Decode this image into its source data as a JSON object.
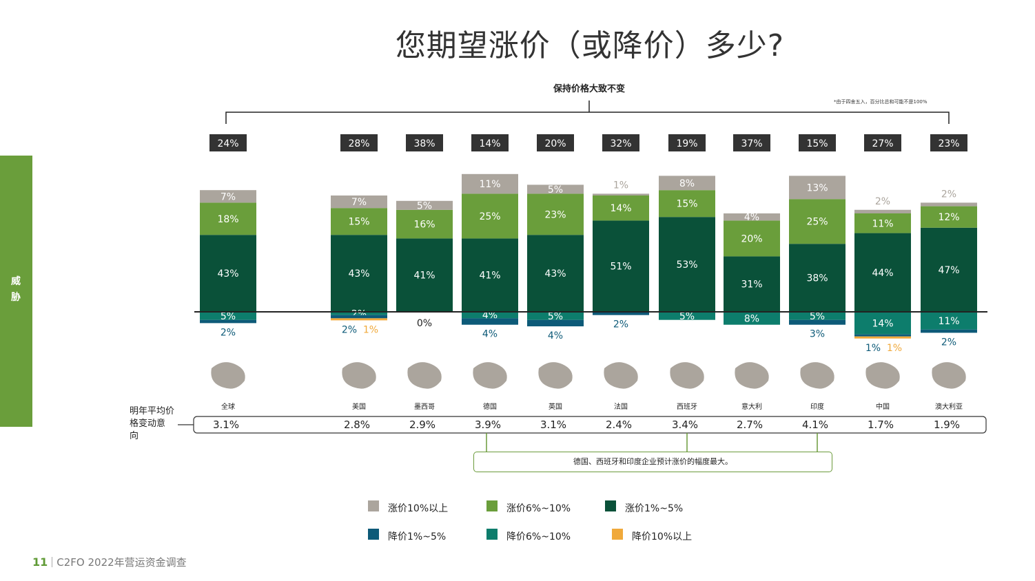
{
  "title": "您期望涨价（或降价）多少?",
  "side_label": "威胁",
  "stable_label": "保持价格大致不变",
  "footnote": "*由于四舍五入，百分比总和可能不是100%",
  "row_label": "明年平均价格变动意向",
  "callout_text": "德国、西班牙和印度企业预计涨价的幅度最大。",
  "footer": {
    "page": "11",
    "text": "C2FO 2022年营运资金调查"
  },
  "colors": {
    "up10plus": "#aba59d",
    "up6to10": "#6a9e3b",
    "up1to5": "#0a5139",
    "down1to5": "#0d5a78",
    "down6to10": "#0d7d6c",
    "down10plus": "#f0a93b",
    "side": "#6a9e3b",
    "badge": "#333333"
  },
  "legend": [
    {
      "key": "up10plus",
      "label": "涨价10%以上"
    },
    {
      "key": "up6to10",
      "label": "涨价6%~10%"
    },
    {
      "key": "up1to5",
      "label": "涨价1%~5%"
    },
    {
      "key": "down1to5",
      "label": "降价1%~5%"
    },
    {
      "key": "down6to10",
      "label": "降价6%~10%"
    },
    {
      "key": "down10plus",
      "label": "降价10%以上"
    }
  ],
  "chart_data": {
    "type": "bar",
    "subtype": "diverging-stacked",
    "title": "您期望涨价（或降价）多少?",
    "categories": [
      "全球",
      "美国",
      "墨西哥",
      "德国",
      "英国",
      "法国",
      "西班牙",
      "意大利",
      "印度",
      "中国",
      "澳大利亚"
    ],
    "stable": [
      "24%",
      "28%",
      "38%",
      "14%",
      "20%",
      "32%",
      "19%",
      "37%",
      "15%",
      "27%",
      "23%"
    ],
    "average": [
      "3.1%",
      "2.8%",
      "2.9%",
      "3.9%",
      "3.1%",
      "2.4%",
      "3.4%",
      "2.7%",
      "4.1%",
      "1.7%",
      "1.9%"
    ],
    "zero_label": "0%",
    "series": [
      {
        "key": "up1to5",
        "name": "涨价1%~5%",
        "values": [
          43,
          43,
          41,
          41,
          43,
          51,
          53,
          31,
          38,
          44,
          47
        ]
      },
      {
        "key": "up6to10",
        "name": "涨价6%~10%",
        "values": [
          18,
          15,
          16,
          25,
          23,
          14,
          15,
          20,
          25,
          11,
          12
        ]
      },
      {
        "key": "up10plus",
        "name": "涨价10%以上",
        "values": [
          7,
          7,
          5,
          11,
          5,
          1,
          8,
          4,
          13,
          2,
          2
        ]
      },
      {
        "key": "down1to5",
        "name": "降价1%~5%",
        "values": [
          2,
          2,
          0,
          4,
          4,
          2,
          0,
          0,
          3,
          1,
          2
        ]
      },
      {
        "key": "down6to10",
        "name": "降价6%~10%",
        "values": [
          5,
          2,
          0,
          4,
          5,
          0,
          5,
          8,
          5,
          14,
          11
        ]
      },
      {
        "key": "down10plus",
        "name": "降价10%以上",
        "values": [
          0,
          1,
          0,
          0,
          0,
          0,
          0,
          0,
          0,
          1,
          0
        ]
      }
    ]
  }
}
